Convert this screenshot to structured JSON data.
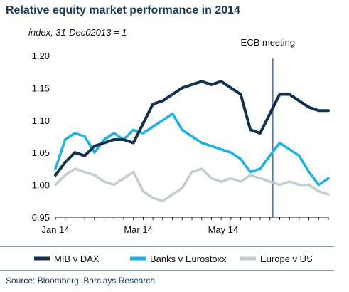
{
  "chart_data": {
    "type": "line",
    "title": "Relative equity market performance in 2014",
    "subtitle": "index, 31-Dec02013 = 1",
    "source": "Source: Bloomberg,  Barclays Research",
    "annotation": "ECB meeting",
    "annotation_week": 22.3,
    "ylim": [
      0.95,
      1.2
    ],
    "yticks": [
      "0.95",
      "1.00",
      "1.05",
      "1.10",
      "1.15",
      "1.20"
    ],
    "xlim": [
      0,
      28
    ],
    "xticks": [
      {
        "label": "Jan 14",
        "week": 0
      },
      {
        "label": "Mar 14",
        "week": 8.5
      },
      {
        "label": "May 14",
        "week": 17.2
      }
    ],
    "grid": false,
    "legend_position": "bottom",
    "colors": {
      "mib_v_dax": "#10324f",
      "banks_v_eurostoxx": "#1ab2e6",
      "europe_v_us": "#c2cdd3",
      "annotation_line": "#3b6fb0"
    },
    "series": [
      {
        "name": "MIB v DAX",
        "color": "#10324f",
        "x": [
          0,
          1,
          2,
          3,
          4,
          5,
          6,
          7,
          8,
          9,
          10,
          11,
          12,
          13,
          14,
          15,
          16,
          17,
          18,
          19,
          20,
          21,
          22,
          23,
          24,
          25,
          26,
          27,
          28
        ],
        "values": [
          1.015,
          1.035,
          1.05,
          1.045,
          1.06,
          1.065,
          1.07,
          1.07,
          1.065,
          1.095,
          1.125,
          1.13,
          1.14,
          1.15,
          1.155,
          1.16,
          1.155,
          1.16,
          1.15,
          1.14,
          1.085,
          1.08,
          1.11,
          1.14,
          1.14,
          1.13,
          1.12,
          1.115,
          1.115
        ]
      },
      {
        "name": "Banks v Eurostoxx",
        "color": "#1ab2e6",
        "x": [
          0,
          1,
          2,
          3,
          4,
          5,
          6,
          7,
          8,
          9,
          10,
          11,
          12,
          13,
          14,
          15,
          16,
          17,
          18,
          19,
          20,
          21,
          22,
          23,
          24,
          25,
          26,
          27,
          28
        ],
        "values": [
          1.025,
          1.07,
          1.08,
          1.075,
          1.05,
          1.07,
          1.08,
          1.07,
          1.085,
          1.08,
          1.09,
          1.1,
          1.11,
          1.085,
          1.075,
          1.065,
          1.06,
          1.055,
          1.05,
          1.04,
          1.02,
          1.025,
          1.045,
          1.065,
          1.055,
          1.045,
          1.02,
          1.0,
          1.01
        ]
      },
      {
        "name": "Europe v US",
        "color": "#c2cdd3",
        "x": [
          0,
          1,
          2,
          3,
          4,
          5,
          6,
          7,
          8,
          9,
          10,
          11,
          12,
          13,
          14,
          15,
          16,
          17,
          18,
          19,
          20,
          21,
          22,
          23,
          24,
          25,
          26,
          27,
          28
        ],
        "values": [
          1.0,
          1.015,
          1.025,
          1.02,
          1.015,
          1.005,
          1.0,
          1.01,
          1.02,
          0.99,
          0.98,
          0.975,
          0.985,
          0.995,
          1.02,
          1.025,
          1.01,
          1.005,
          1.01,
          1.005,
          1.015,
          1.01,
          1.005,
          1.0,
          1.005,
          1.0,
          1.0,
          0.99,
          0.985
        ]
      }
    ]
  }
}
